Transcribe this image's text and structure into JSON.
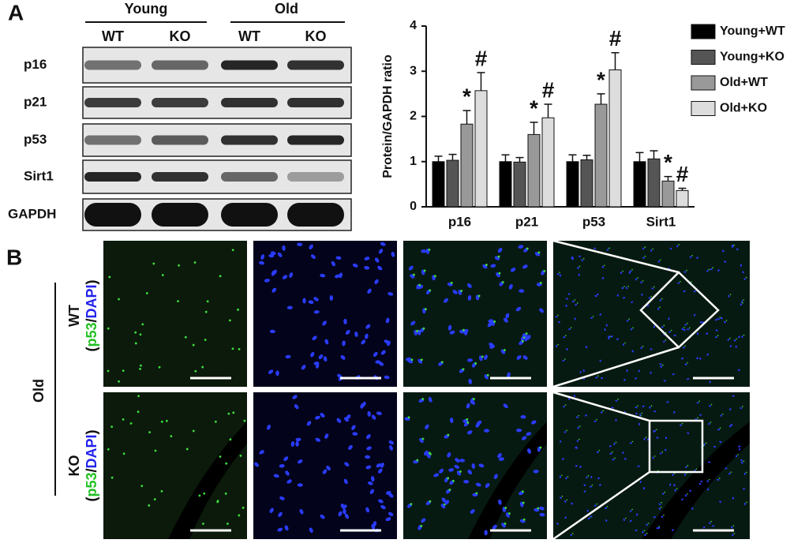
{
  "panel_labels": [
    "A",
    "B"
  ],
  "blot": {
    "groups": [
      "Young",
      "Old"
    ],
    "lanes": [
      "WT",
      "KO",
      "WT",
      "KO"
    ],
    "proteins": [
      "p16",
      "p21",
      "p53",
      "Sirt1",
      "GAPDH"
    ]
  },
  "chart_data": {
    "type": "bar",
    "y_label": "Protein/GAPDH ratio",
    "categories": [
      "p16",
      "p21",
      "p53",
      "Sirt1"
    ],
    "series": [
      {
        "name": "Young+WT",
        "color": "#000000",
        "values": [
          1.0,
          1.0,
          1.0,
          1.0
        ],
        "errors": [
          0.12,
          0.15,
          0.15,
          0.2
        ]
      },
      {
        "name": "Young+KO",
        "color": "#555555",
        "values": [
          1.03,
          0.99,
          1.04,
          1.06
        ],
        "errors": [
          0.13,
          0.1,
          0.1,
          0.18
        ]
      },
      {
        "name": "Old+WT",
        "color": "#999999",
        "values": [
          1.83,
          1.6,
          2.27,
          0.57
        ],
        "errors": [
          0.3,
          0.27,
          0.23,
          0.1
        ],
        "significance": "*"
      },
      {
        "name": "Old+KO",
        "color": "#dddddd",
        "values": [
          2.57,
          1.97,
          3.03,
          0.36
        ],
        "errors": [
          0.4,
          0.3,
          0.38,
          0.05
        ],
        "significance": "#"
      }
    ],
    "ylim": [
      0,
      4
    ],
    "yticks": [
      0,
      1,
      2,
      3,
      4
    ]
  },
  "staining": {
    "group": "Old",
    "rows": [
      "WT",
      "KO"
    ],
    "stain_open": "(",
    "stain_marker": "p53",
    "stain_sep": "/",
    "stain_nucleus": "DAPI",
    "stain_close": ")"
  }
}
